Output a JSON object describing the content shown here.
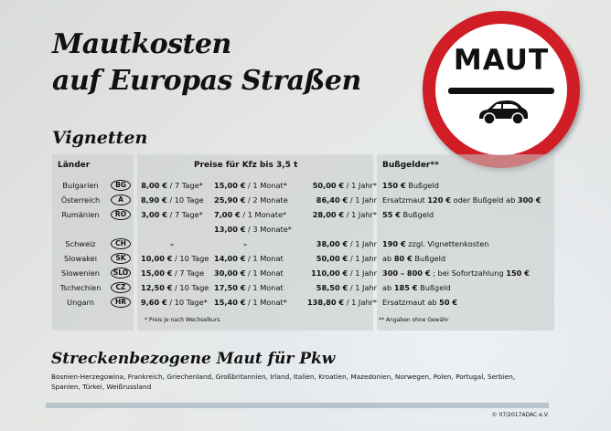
{
  "title_line1": "Mautkosten",
  "title_line2": "auf Europas Straßen",
  "sign": {
    "text": "MAUT",
    "color": "#d11d26",
    "icon": "car-icon"
  },
  "vignetten": {
    "heading": "Vignetten",
    "col_countries": "Länder",
    "col_prices": "Preise für Kfz bis 3,5 t",
    "col_fines": "Bußgelder**",
    "rows": [
      {
        "country": "Bulgarien",
        "plate": "BG",
        "p1": [
          "8,00 €",
          " / 7 Tage*"
        ],
        "p2": [
          "15,00 €",
          " / 1 Monat*"
        ],
        "p3": [
          "50,00 €",
          " / 1 Jahr*"
        ],
        "fine": [
          [
            "150 €",
            1
          ],
          [
            " Bußgeld",
            0
          ]
        ]
      },
      {
        "country": "Österreich",
        "plate": "A",
        "p1": [
          "8,90 €",
          " / 10 Tage"
        ],
        "p2": [
          "25,90 €",
          " / 2 Monate"
        ],
        "p3": [
          "86,40 €",
          " / 1 Jahr"
        ],
        "fine": [
          [
            "Ersatzmaut ",
            0
          ],
          [
            "120 €",
            1
          ],
          [
            " oder Bußgeld ab ",
            0
          ],
          [
            "300 €",
            1
          ]
        ]
      },
      {
        "country": "Rumänien",
        "plate": "RO",
        "p1": [
          "3,00 €",
          " / 7 Tage*"
        ],
        "p2": [
          "7,00 €",
          " / 1 Monate*"
        ],
        "p3": [
          "28,00 €",
          " / 1 Jahr*"
        ],
        "fine": [
          [
            "55 €",
            1
          ],
          [
            " Bußgeld",
            0
          ]
        ]
      },
      {
        "country": "",
        "plate": "",
        "p1": [
          "",
          ""
        ],
        "p2": [
          "13,00 €",
          " / 3 Monate*"
        ],
        "p3": [
          "",
          ""
        ],
        "fine": []
      },
      {
        "country": "Schweiz",
        "plate": "CH",
        "p1": [
          "–",
          ""
        ],
        "p2": [
          "–",
          ""
        ],
        "p3": [
          "38,00 €",
          " / 1 Jahr"
        ],
        "fine": [
          [
            "190 €",
            1
          ],
          [
            " zzgl. Vignettenkosten",
            0
          ]
        ]
      },
      {
        "country": "Slowakei",
        "plate": "SK",
        "p1": [
          "10,00 €",
          " / 10 Tage"
        ],
        "p2": [
          "14,00 €",
          " / 1 Monat"
        ],
        "p3": [
          "50,00 €",
          " / 1 Jahr"
        ],
        "fine": [
          [
            "ab ",
            0
          ],
          [
            "80 €",
            1
          ],
          [
            " Bußgeld",
            0
          ]
        ]
      },
      {
        "country": "Slowenien",
        "plate": "SLO",
        "p1": [
          "15,00 €",
          " / 7 Tage"
        ],
        "p2": [
          "30,00 €",
          " / 1 Monat"
        ],
        "p3": [
          "110,00 €",
          " / 1 Jahr"
        ],
        "fine": [
          [
            "300 – 800 €",
            1
          ],
          [
            " ; bei Sofortzahlung ",
            0
          ],
          [
            "150 €",
            1
          ]
        ]
      },
      {
        "country": "Tschechien",
        "plate": "CZ",
        "p1": [
          "12,50 €",
          " / 10 Tage"
        ],
        "p2": [
          "17,50 €",
          " / 1 Monat"
        ],
        "p3": [
          "58,50 €",
          " / 1 Jahr"
        ],
        "fine": [
          [
            "ab ",
            0
          ],
          [
            "185 €",
            1
          ],
          [
            " Bußgeld",
            0
          ]
        ]
      },
      {
        "country": "Ungarn",
        "plate": "HR",
        "p1": [
          "9,60 €",
          " / 10 Tage*"
        ],
        "p2": [
          "15,40 €",
          " / 1 Monat*"
        ],
        "p3": [
          "138,80 €",
          " / 1 Jahr*"
        ],
        "fine": [
          [
            "Ersatzmaut ab ",
            0
          ],
          [
            "50 €",
            1
          ]
        ]
      }
    ],
    "footnote_prices": "* Preis je nach Wechselkurs",
    "footnote_fines": "** Angaben ohne Gewähr"
  },
  "strecken": {
    "heading": "Streckenbezogene Maut für Pkw",
    "line1": "Bosnien-Herzegowina, Frankreich, Griechenland, Großbritannien, Irland, Italien, Kroatien, Mazedonien, Norwegen, Polen, Portugal, Serbien,",
    "line2": "Spanien, Türkei, Weißrussland"
  },
  "copyright": "© 07/2017ADAC e.V."
}
